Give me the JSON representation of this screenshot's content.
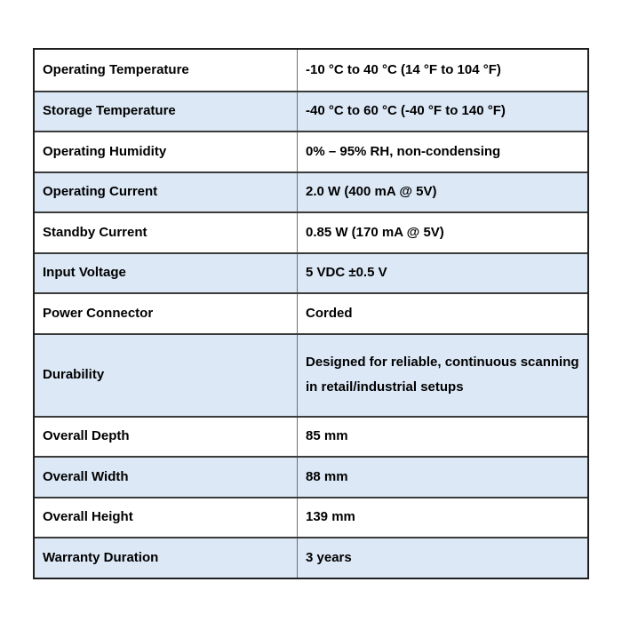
{
  "table": {
    "rows": [
      {
        "label": "Operating Temperature",
        "value": "-10 °C to 40 °C (14 °F to 104 °F)"
      },
      {
        "label": "Storage Temperature",
        "value": "-40 °C to 60 °C (-40 °F to 140 °F)"
      },
      {
        "label": "Operating Humidity",
        "value": "0% – 95% RH, non-condensing"
      },
      {
        "label": "Operating Current",
        "value": "2.0 W (400 mA @ 5V)"
      },
      {
        "label": "Standby Current",
        "value": "0.85 W (170 mA @ 5V)"
      },
      {
        "label": "Input Voltage",
        "value": "5 VDC ±0.5 V"
      },
      {
        "label": "Power Connector",
        "value": "Corded"
      },
      {
        "label": "Durability",
        "value": "Designed for reliable, continuous scanning in retail/industrial setups"
      },
      {
        "label": "Overall Depth",
        "value": "85 mm"
      },
      {
        "label": "Overall Width",
        "value": "88 mm"
      },
      {
        "label": "Overall Height",
        "value": "139 mm"
      },
      {
        "label": "Warranty Duration",
        "value": "3 years"
      }
    ],
    "colors": {
      "row_bg": "#ffffff",
      "row_alt_bg": "#dce8f6",
      "outer_border": "#1f1f1f",
      "row_border": "#3b3b3b",
      "column_border": "#6f6f6f",
      "text": "#000000"
    }
  }
}
